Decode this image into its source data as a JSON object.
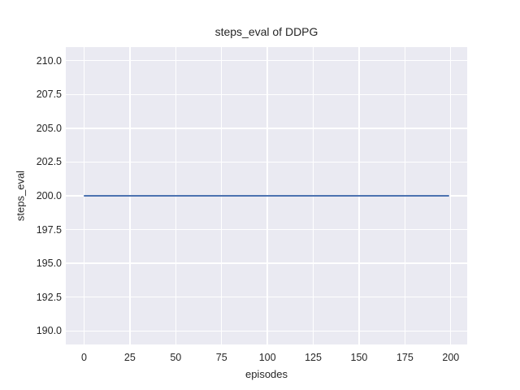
{
  "chart_data": {
    "type": "line",
    "title": "steps_eval of DDPG",
    "xlabel": "episodes",
    "ylabel": "steps_eval",
    "x_ticks": [
      0,
      25,
      50,
      75,
      100,
      125,
      150,
      175,
      200
    ],
    "x_tick_labels": [
      "0",
      "25",
      "50",
      "75",
      "100",
      "125",
      "150",
      "175",
      "200"
    ],
    "y_ticks": [
      210.0,
      207.5,
      205.0,
      202.5,
      200.0,
      197.5,
      195.0,
      192.5,
      190.0
    ],
    "y_tick_labels": [
      "210.0",
      "207.5",
      "205.0",
      "202.5",
      "200.0",
      "197.5",
      "195.0",
      "192.5",
      "190.0"
    ],
    "xlim": [
      -9.95,
      208.95
    ],
    "ylim": [
      189.0,
      211.0
    ],
    "grid": true,
    "legend_position": "none",
    "series": [
      {
        "name": "steps_eval",
        "color": "#4c72b0",
        "constant_value": 200.0,
        "x_start": 0,
        "x_end": 199,
        "points": [
          [
            0,
            200.0
          ],
          [
            199,
            200.0
          ]
        ]
      }
    ],
    "colors": {
      "figure_background": "#ffffff",
      "plot_background": "#eaeaf2",
      "gridline": "#ffffff",
      "text": "#262626"
    }
  }
}
